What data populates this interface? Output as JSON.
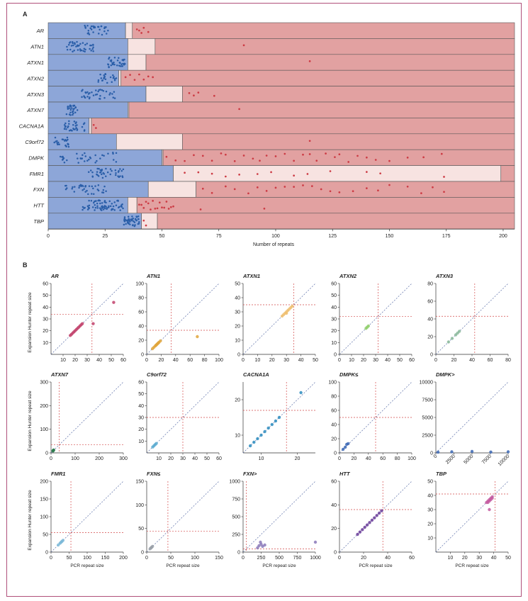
{
  "panel_a_label": "A",
  "panel_b_label": "B",
  "colors": {
    "normal": "#8da6d8",
    "intermediate": "#f7e3e1",
    "pathogenic": "#e2a1a1",
    "blue_dot": "#2a5ea8",
    "red_dot": "#cc3b44",
    "threshold": "#d44a4a",
    "diagonal": "#5b6fa8"
  },
  "chart_data": [
    {
      "type": "scatter",
      "title": "",
      "xlabel": "Number of repeats",
      "ylabel": "",
      "xlim": [
        0,
        205
      ],
      "xticks": [
        0,
        25,
        50,
        75,
        100,
        125,
        150,
        175,
        200
      ],
      "categories": [
        "AR",
        "ATN1",
        "ATXN1",
        "ATXN2",
        "ATXN3",
        "ATXN7",
        "CACNA1A",
        "C9orf72",
        "DMPK",
        "FMR1",
        "FXN",
        "HTT",
        "TBP"
      ],
      "ranges": [
        {
          "gene": "AR",
          "normal_max": 34,
          "intermediate_max": 37
        },
        {
          "gene": "ATN1",
          "normal_max": 35,
          "intermediate_max": 47
        },
        {
          "gene": "ATXN1",
          "normal_max": 35,
          "intermediate_max": 43
        },
        {
          "gene": "ATXN2",
          "normal_max": 31,
          "intermediate_max": 32
        },
        {
          "gene": "ATXN3",
          "normal_max": 43,
          "intermediate_max": 59
        },
        {
          "gene": "ATXN7",
          "normal_max": 35,
          "intermediate_max": 35.5
        },
        {
          "gene": "CACNA1A",
          "normal_max": 18,
          "intermediate_max": 19
        },
        {
          "gene": "C9orf72",
          "normal_max": 30,
          "intermediate_max": 59
        },
        {
          "gene": "DMPK",
          "normal_max": 50,
          "intermediate_max": 50.5
        },
        {
          "gene": "FMR1",
          "normal_max": 55,
          "intermediate_max": 199
        },
        {
          "gene": "FXN",
          "normal_max": 44,
          "intermediate_max": 65
        },
        {
          "gene": "HTT",
          "normal_max": 35,
          "intermediate_max": 39
        },
        {
          "gene": "TBP",
          "normal_max": 41,
          "intermediate_max": 48
        }
      ],
      "normal_clusters": [
        {
          "gene": "AR",
          "from": 16,
          "to": 27,
          "count": 30
        },
        {
          "gene": "ATN1",
          "from": 8,
          "to": 20,
          "count": 40
        },
        {
          "gene": "ATXN1",
          "from": 26,
          "to": 34,
          "count": 35
        },
        {
          "gene": "ATXN2",
          "from": 22,
          "to": 30,
          "count": 22
        },
        {
          "gene": "ATXN3",
          "from": 14,
          "to": 30,
          "count": 35
        },
        {
          "gene": "ATXN7",
          "from": 8,
          "to": 13,
          "count": 28
        },
        {
          "gene": "CACNA1A",
          "from": 7,
          "to": 16,
          "count": 32
        },
        {
          "gene": "C9orf72",
          "from": 2,
          "to": 10,
          "count": 25
        },
        {
          "gene": "DMPK",
          "from": 5,
          "to": 30,
          "count": 35
        },
        {
          "gene": "FMR1",
          "from": 17,
          "to": 33,
          "count": 40
        },
        {
          "gene": "FXN",
          "from": 7,
          "to": 26,
          "count": 35
        },
        {
          "gene": "HTT",
          "from": 15,
          "to": 33,
          "count": 70
        },
        {
          "gene": "TBP",
          "from": 33,
          "to": 40,
          "count": 45
        }
      ],
      "expanded_points": [
        {
          "gene": "AR",
          "values": [
            39,
            40,
            41,
            42,
            44
          ]
        },
        {
          "gene": "ATN1",
          "values": [
            86
          ]
        },
        {
          "gene": "ATXN1",
          "values": [
            115
          ]
        },
        {
          "gene": "ATXN2",
          "values": [
            34,
            36,
            38,
            40,
            42,
            44,
            46
          ]
        },
        {
          "gene": "ATXN3",
          "values": [
            62,
            64,
            66,
            73
          ]
        },
        {
          "gene": "ATXN7",
          "values": [
            84
          ]
        },
        {
          "gene": "CACNA1A",
          "values": [
            20,
            21
          ]
        },
        {
          "gene": "C9orf72",
          "values": [
            115
          ]
        },
        {
          "gene": "DMPK",
          "values": [
            52,
            56,
            60,
            64,
            68,
            72,
            76,
            78,
            82,
            86,
            90,
            93,
            96,
            100,
            104,
            108,
            112,
            115,
            118,
            122,
            126,
            128,
            132,
            136,
            140,
            144,
            150,
            158,
            165,
            173
          ]
        },
        {
          "gene": "FMR1",
          "values": [
            60,
            66,
            72,
            78,
            84,
            92,
            98,
            108,
            114,
            124,
            140,
            146,
            174
          ]
        },
        {
          "gene": "FXN",
          "values": [
            68,
            72,
            78,
            82,
            88,
            92,
            96,
            100,
            104,
            108,
            112,
            116,
            120,
            124,
            128,
            134,
            140,
            145,
            150,
            158,
            164,
            169,
            174
          ]
        },
        {
          "gene": "HTT",
          "values": [
            40,
            41,
            42,
            43,
            44,
            45,
            46,
            47,
            48,
            49,
            50,
            51,
            52,
            53,
            54,
            55,
            67,
            95
          ]
        },
        {
          "gene": "TBP",
          "values": [
            42,
            43
          ]
        }
      ]
    },
    {
      "type": "scatter",
      "title": "",
      "xlabel": "PCR repeat size",
      "ylabel": "Expansion Hunter repeat size",
      "panels": [
        {
          "gene": "AR",
          "lim": [
            0,
            60
          ],
          "ticks": [
            10,
            20,
            30,
            40,
            50,
            60
          ],
          "threshold": 34,
          "color": "#c2416b",
          "points": [
            [
              16,
              16
            ],
            [
              17,
              17
            ],
            [
              18,
              18
            ],
            [
              19,
              19
            ],
            [
              20,
              20
            ],
            [
              21,
              21
            ],
            [
              22,
              22
            ],
            [
              23,
              23
            ],
            [
              24,
              24
            ],
            [
              25,
              25
            ],
            [
              26,
              26
            ],
            [
              35,
              26
            ],
            [
              52,
              44
            ]
          ]
        },
        {
          "gene": "ATN1",
          "lim": [
            0,
            100
          ],
          "ticks": [
            0,
            20,
            40,
            60,
            80,
            100
          ],
          "threshold": 34,
          "color": "#e0a43a",
          "points": [
            [
              8,
              8
            ],
            [
              10,
              10
            ],
            [
              12,
              12
            ],
            [
              13,
              13
            ],
            [
              14,
              14
            ],
            [
              15,
              15
            ],
            [
              16,
              16
            ],
            [
              17,
              17
            ],
            [
              19,
              19
            ],
            [
              70,
              25
            ]
          ]
        },
        {
          "gene": "ATXN1",
          "lim": [
            0,
            50
          ],
          "ticks": [
            0,
            10,
            20,
            30,
            40,
            50
          ],
          "threshold": 35,
          "color": "#f0c070",
          "points": [
            [
              27,
              27
            ],
            [
              28,
              28
            ],
            [
              29,
              29
            ],
            [
              30,
              30
            ],
            [
              30,
              29
            ],
            [
              31,
              31
            ],
            [
              32,
              32
            ],
            [
              33,
              33
            ],
            [
              34,
              34
            ]
          ]
        },
        {
          "gene": "ATXN2",
          "lim": [
            0,
            60
          ],
          "ticks": [
            0,
            10,
            20,
            30,
            40,
            50,
            60
          ],
          "threshold": 32,
          "color": "#8fcf6a",
          "points": [
            [
              22,
              22
            ],
            [
              23,
              23
            ],
            [
              24,
              24
            ]
          ]
        },
        {
          "gene": "ATXN3",
          "lim": [
            0,
            80
          ],
          "ticks": [
            0,
            20,
            40,
            60,
            80
          ],
          "threshold": 43,
          "color": "#8ab89a",
          "points": [
            [
              14,
              14
            ],
            [
              18,
              18
            ],
            [
              22,
              22
            ],
            [
              24,
              24
            ],
            [
              26,
              26
            ]
          ]
        },
        {
          "gene": "ATXN7",
          "lim": [
            0,
            300
          ],
          "ticks": [
            0,
            100,
            200,
            300
          ],
          "threshold": 34,
          "color": "#2e7d4f",
          "points": [
            [
              8,
              8
            ],
            [
              9,
              10
            ],
            [
              10,
              11
            ],
            [
              11,
              12
            ]
          ]
        },
        {
          "gene": "C9orf72",
          "lim": [
            0,
            60
          ],
          "ticks": [
            10,
            20,
            30,
            40,
            50,
            60
          ],
          "threshold": 30,
          "color": "#5aaad0",
          "points": [
            [
              5,
              5
            ],
            [
              6,
              6
            ],
            [
              7,
              7
            ],
            [
              8,
              8
            ]
          ]
        },
        {
          "gene": "CACNA1A",
          "lim": [
            5,
            25
          ],
          "ticks": [
            10,
            20
          ],
          "threshold": 17,
          "color": "#2b8cbe",
          "points": [
            [
              7,
              7
            ],
            [
              8,
              8
            ],
            [
              9,
              9
            ],
            [
              10,
              10
            ],
            [
              11,
              11
            ],
            [
              12,
              12
            ],
            [
              13,
              13
            ],
            [
              14,
              14
            ],
            [
              15,
              15
            ],
            [
              21,
              22
            ]
          ]
        },
        {
          "gene": "DMPK≤",
          "lim": [
            0,
            100
          ],
          "ticks": [
            0,
            20,
            40,
            60,
            80,
            100
          ],
          "threshold": 50,
          "color": "#3a66b4",
          "points": [
            [
              5,
              5
            ],
            [
              8,
              8
            ],
            [
              10,
              12
            ],
            [
              12,
              13
            ]
          ]
        },
        {
          "gene": "DMPK>",
          "lim": [
            0,
            10000
          ],
          "ticks": [
            0,
            2500,
            5000,
            7500,
            10000
          ],
          "threshold": null,
          "color": "#3a66b4",
          "points": [
            [
              300,
              100
            ],
            [
              2200,
              150
            ],
            [
              5000,
              200
            ],
            [
              7600,
              120
            ],
            [
              10000,
              150
            ]
          ]
        },
        {
          "gene": "FMR1",
          "lim": [
            0,
            200
          ],
          "ticks": [
            0,
            50,
            100,
            150,
            200
          ],
          "threshold": 55,
          "color": "#7ab8d8",
          "points": [
            [
              20,
              20
            ],
            [
              25,
              25
            ],
            [
              28,
              28
            ],
            [
              30,
              30
            ],
            [
              33,
              33
            ]
          ]
        },
        {
          "gene": "FXN≤",
          "lim": [
            0,
            150
          ],
          "ticks": [
            0,
            50,
            100,
            150
          ],
          "threshold": 44,
          "color": "#9aa0a8",
          "points": [
            [
              7,
              7
            ],
            [
              9,
              9
            ],
            [
              10,
              10
            ],
            [
              12,
              12
            ]
          ]
        },
        {
          "gene": "FXN>",
          "lim": [
            0,
            1000
          ],
          "ticks": [
            0,
            250,
            500,
            750,
            1000
          ],
          "threshold": 44,
          "color": "#8a78b8",
          "points": [
            [
              200,
              60
            ],
            [
              220,
              90
            ],
            [
              250,
              110
            ],
            [
              240,
              140
            ],
            [
              270,
              80
            ],
            [
              300,
              100
            ],
            [
              1000,
              140
            ]
          ]
        },
        {
          "gene": "HTT",
          "lim": [
            0,
            60
          ],
          "ticks": [
            0,
            20,
            40,
            60
          ],
          "threshold": 36,
          "color": "#6a3c99",
          "points": [
            [
              15,
              15
            ],
            [
              17,
              17
            ],
            [
              19,
              19
            ],
            [
              21,
              21
            ],
            [
              23,
              23
            ],
            [
              25,
              25
            ],
            [
              27,
              27
            ],
            [
              29,
              29
            ],
            [
              31,
              31
            ],
            [
              33,
              33
            ],
            [
              35,
              35
            ]
          ]
        },
        {
          "gene": "TBP",
          "lim": [
            0,
            50
          ],
          "ticks": [
            10,
            20,
            30,
            40,
            50
          ],
          "threshold": 41,
          "color": "#c45aa0",
          "points": [
            [
              35,
              35
            ],
            [
              36,
              36
            ],
            [
              37,
              37
            ],
            [
              38,
              38
            ],
            [
              39,
              39
            ],
            [
              37,
              36
            ],
            [
              38,
              37
            ],
            [
              36,
              35
            ],
            [
              39,
              38
            ],
            [
              37,
              30
            ]
          ]
        }
      ]
    }
  ]
}
